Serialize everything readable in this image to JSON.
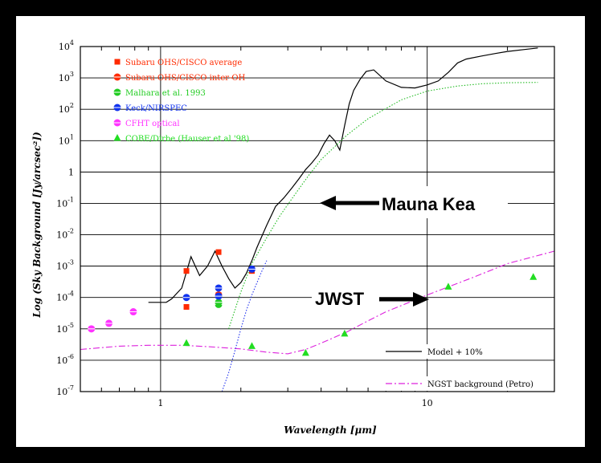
{
  "chart_data": {
    "type": "line",
    "xlabel": "Wavelength [μm]",
    "ylabel": "Log (Sky Background [Jy/arcsec²])",
    "xscale": "log",
    "yscale": "log",
    "xlim": [
      0.5,
      30
    ],
    "ylim": [
      1e-07,
      10000
    ],
    "grid": "horizontal",
    "x_ticks": [
      {
        "value": 1,
        "label": "1"
      },
      {
        "value": 10,
        "label": "10"
      }
    ],
    "y_ticks": [
      {
        "value": 10000,
        "base": "10",
        "exp": "4"
      },
      {
        "value": 1000,
        "base": "10",
        "exp": "3"
      },
      {
        "value": 100,
        "base": "10",
        "exp": "2"
      },
      {
        "value": 10,
        "base": "10",
        "exp": "1"
      },
      {
        "value": 1,
        "base": "1",
        "exp": ""
      },
      {
        "value": 0.1,
        "base": "10",
        "exp": "-1"
      },
      {
        "value": 0.01,
        "base": "10",
        "exp": "-2"
      },
      {
        "value": 0.001,
        "base": "10",
        "exp": "-3"
      },
      {
        "value": 0.0001,
        "base": "10",
        "exp": "-4"
      },
      {
        "value": 1e-05,
        "base": "10",
        "exp": "-5"
      },
      {
        "value": 1e-06,
        "base": "10",
        "exp": "-6"
      },
      {
        "value": 1e-07,
        "base": "10",
        "exp": "-7"
      }
    ],
    "series": [
      {
        "name": "Subaru OHS/CISCO average",
        "kind": "points",
        "marker": "square",
        "color": "#ff2a00",
        "x": [
          1.25,
          1.25,
          1.65,
          1.65,
          2.2
        ],
        "y": [
          0.0007,
          5e-05,
          0.0028,
          0.00012,
          0.0007
        ]
      },
      {
        "name": "Subaru OHS/CISCO inter-OH",
        "kind": "points",
        "marker": "circle-half",
        "color": "#ff2a00",
        "x": [
          1.65
        ],
        "y": [
          0.00012
        ]
      },
      {
        "name": "Malhara et al. 1993",
        "kind": "points",
        "marker": "circle-half",
        "color": "#22cc22",
        "x": [
          1.65,
          1.65
        ],
        "y": [
          6e-05,
          7e-05
        ]
      },
      {
        "name": "Keck/NIRSPEC",
        "kind": "points",
        "marker": "circle-half",
        "color": "#1133ee",
        "x": [
          1.25,
          1.65,
          1.65,
          2.2
        ],
        "y": [
          0.0001,
          0.0002,
          0.00011,
          0.0008
        ]
      },
      {
        "name": "CFHT optical",
        "kind": "points",
        "marker": "circle-half",
        "color": "#ff33ff",
        "x": [
          0.55,
          0.64,
          0.79
        ],
        "y": [
          1e-05,
          1.5e-05,
          3.5e-05
        ]
      },
      {
        "name": "COBE/Dirbe (Hauser et al '98)",
        "kind": "points",
        "marker": "triangle",
        "color": "#22dd22",
        "x": [
          1.25,
          2.2,
          3.5,
          4.9,
          12,
          25
        ],
        "y": [
          3.5e-06,
          2.8e-06,
          1.7e-06,
          7e-06,
          0.00022,
          0.00045
        ]
      },
      {
        "name": "Model + 10%",
        "kind": "line",
        "style": "solid",
        "color": "#000000",
        "x": [
          0.9,
          1.0,
          1.05,
          1.1,
          1.2,
          1.3,
          1.4,
          1.5,
          1.6,
          1.7,
          1.8,
          1.9,
          2.0,
          2.1,
          2.2,
          2.3,
          2.5,
          2.7,
          2.9,
          3.1,
          3.3,
          3.5,
          3.7,
          3.9,
          4.1,
          4.3,
          4.5,
          4.7,
          4.9,
          5.1,
          5.3,
          5.6,
          5.9,
          6.3,
          7.0,
          8.0,
          9.0,
          10,
          11,
          12,
          13,
          14,
          16,
          18,
          20,
          23,
          26
        ],
        "y": [
          7e-05,
          7e-05,
          7e-05,
          9e-05,
          0.0002,
          0.002,
          0.0005,
          0.001,
          0.003,
          0.001,
          0.0004,
          0.0002,
          0.0003,
          0.0006,
          0.0015,
          0.004,
          0.02,
          0.08,
          0.15,
          0.3,
          0.6,
          1.2,
          2.0,
          3.5,
          8,
          15,
          10,
          5,
          30,
          150,
          400,
          900,
          1600,
          1800,
          800,
          500,
          480,
          600,
          800,
          1500,
          3000,
          4000,
          5000,
          6000,
          7000,
          8000,
          9000
        ]
      },
      {
        "name": "NGST background (Petro)",
        "kind": "line",
        "style": "dashdot",
        "color": "#dd22dd",
        "x": [
          0.5,
          0.7,
          0.9,
          1.2,
          1.5,
          2.0,
          2.5,
          3.0,
          3.5,
          4.0,
          5.0,
          6.0,
          7.0,
          10,
          15,
          20,
          30
        ],
        "y": [
          2.2e-06,
          2.8e-06,
          3e-06,
          3e-06,
          2.7e-06,
          2.3e-06,
          1.8e-06,
          1.6e-06,
          2.2e-06,
          3.5e-06,
          8e-06,
          1.8e-05,
          3.5e-05,
          0.00012,
          0.00045,
          0.0012,
          0.003
        ]
      },
      {
        "name": "",
        "kind": "line",
        "style": "dotted",
        "color": "#22bb22",
        "x": [
          1.8,
          2.0,
          2.2,
          2.5,
          2.8,
          3.2,
          3.6,
          4.0,
          5.0,
          6.0,
          8.0,
          10,
          13,
          16,
          20,
          26
        ],
        "y": [
          1e-05,
          0.00015,
          0.0012,
          0.008,
          0.04,
          0.2,
          0.8,
          2.5,
          15,
          50,
          200,
          380,
          550,
          650,
          700,
          720
        ]
      },
      {
        "name": "",
        "kind": "line",
        "style": "dotted",
        "color": "#2233ee",
        "x": [
          1.7,
          1.8,
          1.9,
          2.0,
          2.1,
          2.2,
          2.3,
          2.4,
          2.5
        ],
        "y": [
          1e-07,
          4e-07,
          2e-06,
          1e-05,
          4e-05,
          0.00012,
          0.0003,
          0.0007,
          0.0015
        ]
      }
    ],
    "annotations": [
      {
        "text": "Mauna Kea",
        "arrow": "left"
      },
      {
        "text": "JWST",
        "arrow": "right"
      }
    ],
    "colors": {
      "frame": "#000000",
      "background": "#ffffff",
      "grid": "#000000"
    }
  }
}
